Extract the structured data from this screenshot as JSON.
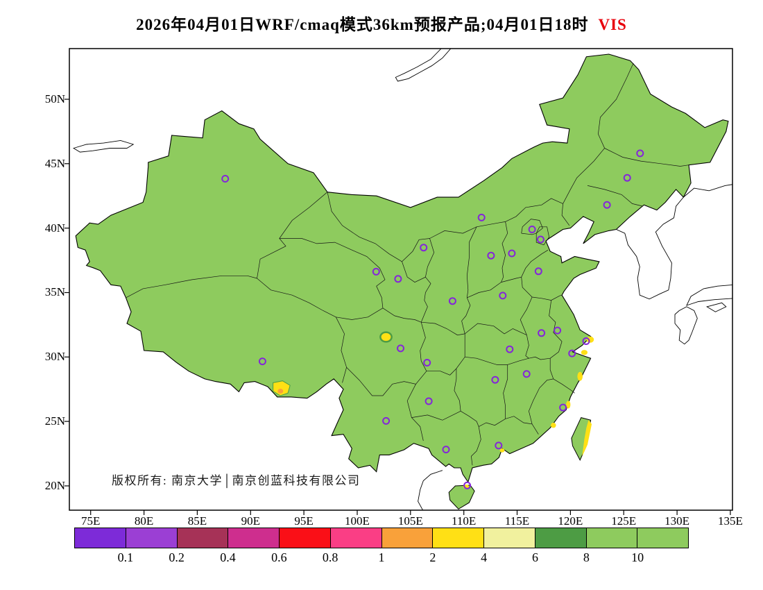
{
  "title": {
    "text": "2026年04月01日WRF/cmaq模式36km预报产品;04月01日18时",
    "variable": "VIS",
    "variable_color": "#e8000b"
  },
  "copyright": "版权所有: 南京大学│南京创蓝科技有限公司",
  "axes": {
    "lat_labels": [
      "50N",
      "45N",
      "40N",
      "35N",
      "30N",
      "25N",
      "20N"
    ],
    "lon_labels": [
      "75E",
      "80E",
      "85E",
      "90E",
      "95E",
      "100E",
      "105E",
      "110E",
      "115E",
      "120E",
      "125E",
      "130E",
      "135E"
    ]
  },
  "map": {
    "fill_color": "#8ECB5E",
    "low_vis_color": "#FFE015",
    "border_color": "#000000",
    "marker_color": "#8426D9",
    "markers": [
      [
        87.62,
        43.83
      ],
      [
        91.11,
        29.66
      ],
      [
        101.78,
        36.62
      ],
      [
        103.83,
        36.06
      ],
      [
        106.23,
        38.49
      ],
      [
        104.07,
        30.67
      ],
      [
        106.55,
        29.56
      ],
      [
        102.71,
        25.04
      ],
      [
        106.71,
        26.57
      ],
      [
        108.94,
        34.34
      ],
      [
        112.55,
        37.87
      ],
      [
        111.66,
        40.82
      ],
      [
        113.65,
        34.76
      ],
      [
        114.5,
        38.04
      ],
      [
        116.4,
        39.9
      ],
      [
        117.2,
        39.12
      ],
      [
        117.0,
        36.65
      ],
      [
        114.3,
        30.6
      ],
      [
        112.94,
        28.23
      ],
      [
        113.26,
        23.13
      ],
      [
        108.33,
        22.82
      ],
      [
        110.32,
        20.03
      ],
      [
        115.89,
        28.68
      ],
      [
        117.28,
        31.86
      ],
      [
        118.78,
        32.06
      ],
      [
        121.47,
        31.23
      ],
      [
        120.15,
        30.28
      ],
      [
        119.3,
        26.08
      ],
      [
        123.43,
        41.8
      ],
      [
        125.32,
        43.9
      ],
      [
        126.53,
        45.8
      ]
    ]
  },
  "colorbar": {
    "colors": [
      "#7D2BD8",
      "#9B3FD4",
      "#A63257",
      "#CE2E8E",
      "#FA0F17",
      "#FA3E85",
      "#F9A13A",
      "#FFE015",
      "#F1F19E",
      "#4D9C44",
      "#8ECB5E",
      "#8ECB5E"
    ],
    "labels": [
      "0.1",
      "0.2",
      "0.4",
      "0.6",
      "0.8",
      "1",
      "2",
      "4",
      "6",
      "8",
      "10"
    ]
  }
}
